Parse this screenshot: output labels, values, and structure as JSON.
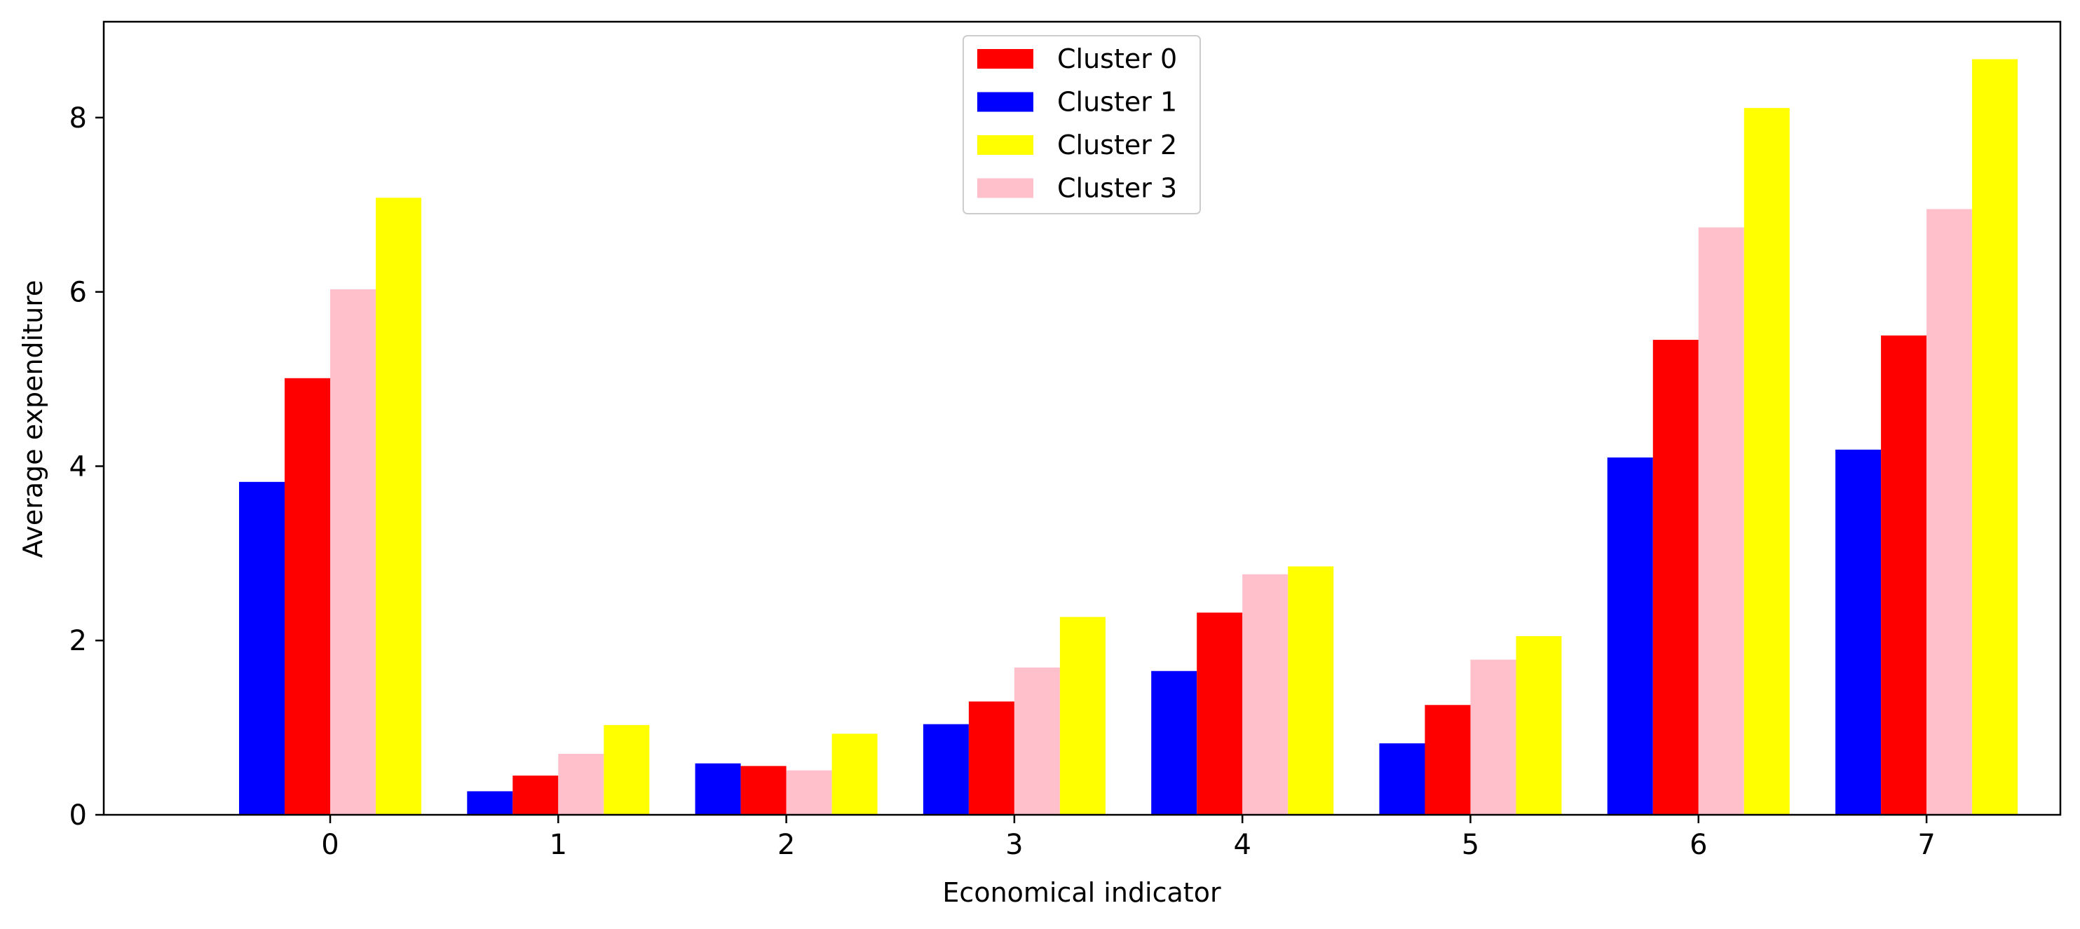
{
  "chart_data": {
    "type": "bar",
    "title": "",
    "xlabel": "Economical indicator",
    "ylabel": "Average expenditure",
    "categories": [
      "0",
      "1",
      "2",
      "3",
      "4",
      "5",
      "6",
      "7"
    ],
    "ylim": [
      0,
      9.1
    ],
    "yticks": [
      "0",
      "2",
      "4",
      "6",
      "8"
    ],
    "grid": false,
    "legend_position": "top-center",
    "bar_order": [
      "Cluster 1",
      "Cluster 0",
      "Cluster 3",
      "Cluster 2"
    ],
    "series": [
      {
        "name": "Cluster 0",
        "color": "#ff0000",
        "values": [
          5.01,
          0.45,
          0.56,
          1.3,
          2.32,
          1.26,
          5.45,
          5.5
        ]
      },
      {
        "name": "Cluster 1",
        "color": "#0000ff",
        "values": [
          3.82,
          0.27,
          0.59,
          1.04,
          1.65,
          0.82,
          4.1,
          4.19
        ]
      },
      {
        "name": "Cluster 2",
        "color": "#ffff00",
        "values": [
          7.08,
          1.03,
          0.93,
          2.27,
          2.85,
          2.05,
          8.11,
          8.67
        ]
      },
      {
        "name": "Cluster 3",
        "color": "#ffc0cb",
        "values": [
          6.03,
          0.7,
          0.51,
          1.69,
          2.76,
          1.78,
          6.74,
          6.95
        ]
      }
    ]
  }
}
